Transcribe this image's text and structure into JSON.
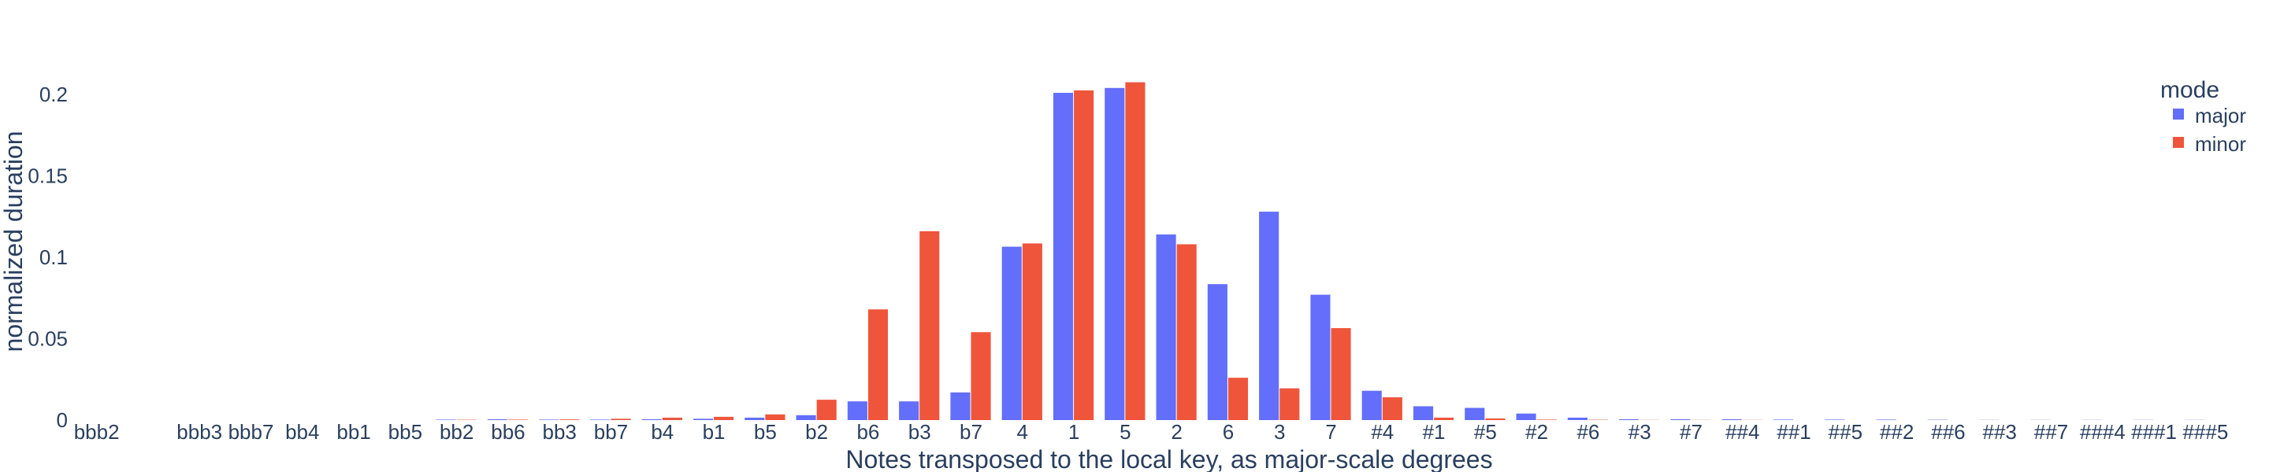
{
  "chart_data": {
    "type": "bar",
    "barmode": "group",
    "xlabel": "Notes transposed to the local key, as major-scale degrees",
    "ylabel": "normalized duration",
    "ylim": [
      0,
      0.23
    ],
    "yticks": [
      0,
      0.05,
      0.1,
      0.15,
      0.2
    ],
    "ytick_labels": [
      "0",
      "0.05",
      "0.1",
      "0.15",
      "0.2"
    ],
    "grid": false,
    "categories": [
      "bbb2",
      "",
      "bbb3",
      "bbb7",
      "bb4",
      "bb1",
      "bb5",
      "bb2",
      "bb6",
      "bb3",
      "bb7",
      "b4",
      "b1",
      "b5",
      "b2",
      "b6",
      "b3",
      "b7",
      "4",
      "1",
      "5",
      "2",
      "6",
      "3",
      "7",
      "#4",
      "#1",
      "#5",
      "#2",
      "#6",
      "#3",
      "#7",
      "##4",
      "##1",
      "##5",
      "##2",
      "##6",
      "##3",
      "##7",
      "###4",
      "###1",
      "###5"
    ],
    "series": [
      {
        "name": "major",
        "color": "#636efa",
        "values": [
          0,
          0,
          0,
          0,
          0,
          0,
          0,
          0.0003,
          0.0005,
          0.0003,
          0.0003,
          0.0005,
          0.0008,
          0.0015,
          0.003,
          0.0115,
          0.0115,
          0.017,
          0.1065,
          0.201,
          0.204,
          0.114,
          0.0835,
          0.128,
          0.077,
          0.018,
          0.0085,
          0.0075,
          0.004,
          0.0015,
          0.0005,
          0.0005,
          0.0005,
          0.0003,
          0.0003,
          0.0003,
          0.0002,
          0.0001,
          0.0001,
          0.0001,
          0.0001,
          0.0001
        ]
      },
      {
        "name": "minor",
        "color": "#ef553b",
        "values": [
          0,
          0,
          0,
          0,
          0,
          0,
          0,
          0.0002,
          0.0003,
          0.0004,
          0.0008,
          0.0015,
          0.002,
          0.0035,
          0.0125,
          0.068,
          0.116,
          0.054,
          0.1085,
          0.2025,
          0.2075,
          0.108,
          0.026,
          0.0195,
          0.0565,
          0.014,
          0.0015,
          0.001,
          0.0003,
          0.0002,
          0.0001,
          0.0001,
          0.0001,
          0,
          0,
          0,
          0,
          0,
          0,
          0,
          0,
          0
        ]
      }
    ],
    "legend": {
      "title": "mode",
      "placement": "top-right"
    }
  }
}
